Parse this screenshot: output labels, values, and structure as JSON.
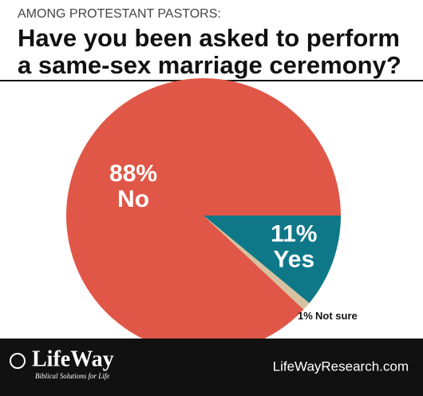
{
  "chart_data": {
    "type": "pie",
    "subtitle": "AMONG PROTESTANT PASTORS:",
    "title": [
      "Have you been asked to perform",
      "a same-sex marriage ceremony?"
    ],
    "categories": [
      "Yes",
      "Not sure",
      "No"
    ],
    "values": [
      11,
      1,
      88
    ],
    "value_labels": [
      "11%",
      "1%",
      "88%"
    ],
    "colors": [
      "#0e7889",
      "#d6c29e",
      "#e05747"
    ]
  },
  "footer": {
    "logo": "LifeWay",
    "tagline": "Biblical Solutions for Life",
    "url": "LifeWayResearch.com"
  }
}
